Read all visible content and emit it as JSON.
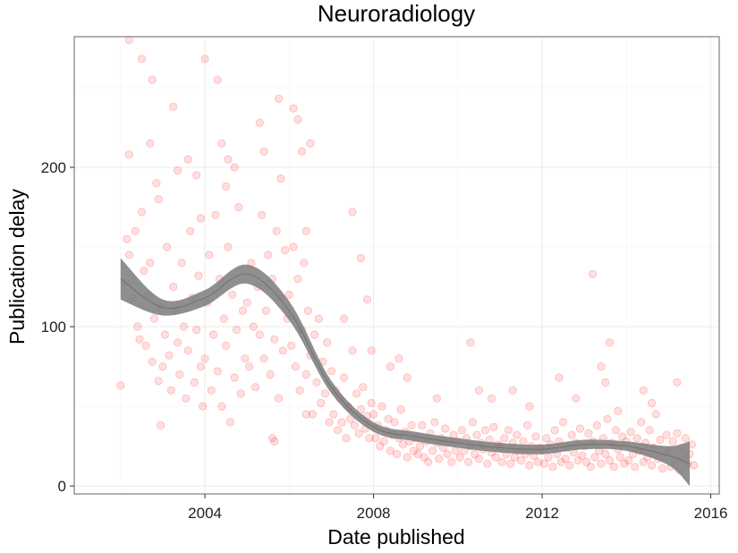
{
  "chart_data": {
    "type": "scatter",
    "title": "Neuroradiology",
    "xlabel": "Date published",
    "ylabel": "Publication delay",
    "xlim": [
      2000.9,
      2016.2
    ],
    "ylim": [
      -5,
      282
    ],
    "x_ticks": [
      2004,
      2008,
      2012,
      2016
    ],
    "y_ticks": [
      0,
      100,
      200
    ],
    "grid": true,
    "colors": {
      "points": "#ff0000",
      "smooth_band": "#808080",
      "smooth_line": "#555555",
      "panel_border": "#7f7f7f",
      "grid": "#ebebeb"
    },
    "smooth": {
      "x": [
        2002.0,
        2003.0,
        2004.0,
        2005.0,
        2006.0,
        2007.0,
        2008.0,
        2009.0,
        2010.0,
        2011.0,
        2012.0,
        2013.0,
        2014.0,
        2015.0,
        2015.5
      ],
      "y": [
        130,
        112,
        118,
        133,
        110,
        62,
        37,
        31,
        27,
        24,
        23,
        26,
        25,
        19,
        14
      ],
      "band_halfwidth": [
        13,
        5,
        5,
        6,
        6,
        4,
        3,
        3,
        3,
        3,
        3,
        3,
        3,
        6,
        14
      ]
    },
    "points": [
      [
        2002.0,
        63
      ],
      [
        2002.1,
        128
      ],
      [
        2002.15,
        155
      ],
      [
        2002.2,
        145
      ],
      [
        2002.3,
        118
      ],
      [
        2002.35,
        160
      ],
      [
        2002.4,
        100
      ],
      [
        2002.45,
        92
      ],
      [
        2002.5,
        172
      ],
      [
        2002.55,
        135
      ],
      [
        2002.6,
        88
      ],
      [
        2002.65,
        120
      ],
      [
        2002.7,
        140
      ],
      [
        2002.75,
        78
      ],
      [
        2002.8,
        105
      ],
      [
        2002.85,
        190
      ],
      [
        2002.9,
        66
      ],
      [
        2002.95,
        112
      ],
      [
        2002.2,
        208
      ],
      [
        2002.2,
        280
      ],
      [
        2002.5,
        268
      ],
      [
        2002.7,
        215
      ],
      [
        2002.75,
        255
      ],
      [
        2002.9,
        180
      ],
      [
        2002.95,
        38
      ],
      [
        2003.0,
        75
      ],
      [
        2003.05,
        95
      ],
      [
        2003.1,
        150
      ],
      [
        2003.15,
        82
      ],
      [
        2003.2,
        60
      ],
      [
        2003.25,
        125
      ],
      [
        2003.3,
        110
      ],
      [
        2003.35,
        90
      ],
      [
        2003.4,
        70
      ],
      [
        2003.45,
        140
      ],
      [
        2003.5,
        100
      ],
      [
        2003.55,
        55
      ],
      [
        2003.6,
        85
      ],
      [
        2003.65,
        160
      ],
      [
        2003.7,
        118
      ],
      [
        2003.75,
        65
      ],
      [
        2003.8,
        98
      ],
      [
        2003.85,
        132
      ],
      [
        2003.9,
        75
      ],
      [
        2003.95,
        50
      ],
      [
        2003.25,
        238
      ],
      [
        2003.35,
        198
      ],
      [
        2003.6,
        205
      ],
      [
        2003.8,
        195
      ],
      [
        2003.9,
        168
      ],
      [
        2004.0,
        80
      ],
      [
        2004.05,
        115
      ],
      [
        2004.1,
        145
      ],
      [
        2004.15,
        60
      ],
      [
        2004.2,
        95
      ],
      [
        2004.25,
        170
      ],
      [
        2004.3,
        72
      ],
      [
        2004.35,
        130
      ],
      [
        2004.4,
        50
      ],
      [
        2004.45,
        105
      ],
      [
        2004.5,
        88
      ],
      [
        2004.55,
        150
      ],
      [
        2004.6,
        40
      ],
      [
        2004.65,
        120
      ],
      [
        2004.7,
        68
      ],
      [
        2004.75,
        98
      ],
      [
        2004.8,
        175
      ],
      [
        2004.85,
        58
      ],
      [
        2004.9,
        110
      ],
      [
        2004.95,
        80
      ],
      [
        2004.0,
        268
      ],
      [
        2004.3,
        255
      ],
      [
        2004.4,
        215
      ],
      [
        2004.5,
        188
      ],
      [
        2004.55,
        205
      ],
      [
        2004.7,
        200
      ],
      [
        2005.0,
        115
      ],
      [
        2005.05,
        75
      ],
      [
        2005.1,
        140
      ],
      [
        2005.15,
        100
      ],
      [
        2005.2,
        62
      ],
      [
        2005.25,
        125
      ],
      [
        2005.3,
        95
      ],
      [
        2005.35,
        170
      ],
      [
        2005.4,
        80
      ],
      [
        2005.45,
        110
      ],
      [
        2005.5,
        145
      ],
      [
        2005.55,
        70
      ],
      [
        2005.6,
        130
      ],
      [
        2005.65,
        92
      ],
      [
        2005.7,
        160
      ],
      [
        2005.75,
        55
      ],
      [
        2005.8,
        118
      ],
      [
        2005.85,
        85
      ],
      [
        2005.9,
        148
      ],
      [
        2005.95,
        105
      ],
      [
        2005.3,
        228
      ],
      [
        2005.4,
        210
      ],
      [
        2005.6,
        30
      ],
      [
        2005.65,
        28
      ],
      [
        2005.75,
        243
      ],
      [
        2005.8,
        193
      ],
      [
        2006.0,
        120
      ],
      [
        2006.05,
        88
      ],
      [
        2006.1,
        150
      ],
      [
        2006.15,
        75
      ],
      [
        2006.2,
        130
      ],
      [
        2006.25,
        60
      ],
      [
        2006.3,
        98
      ],
      [
        2006.35,
        140
      ],
      [
        2006.4,
        70
      ],
      [
        2006.45,
        110
      ],
      [
        2006.5,
        82
      ],
      [
        2006.55,
        45
      ],
      [
        2006.6,
        95
      ],
      [
        2006.65,
        65
      ],
      [
        2006.7,
        105
      ],
      [
        2006.75,
        52
      ],
      [
        2006.8,
        78
      ],
      [
        2006.85,
        58
      ],
      [
        2006.9,
        90
      ],
      [
        2006.95,
        40
      ],
      [
        2006.1,
        237
      ],
      [
        2006.2,
        230
      ],
      [
        2006.3,
        210
      ],
      [
        2006.5,
        215
      ],
      [
        2006.4,
        160
      ],
      [
        2006.4,
        45
      ],
      [
        2007.0,
        72
      ],
      [
        2007.05,
        45
      ],
      [
        2007.1,
        60
      ],
      [
        2007.15,
        35
      ],
      [
        2007.2,
        55
      ],
      [
        2007.25,
        40
      ],
      [
        2007.3,
        68
      ],
      [
        2007.35,
        30
      ],
      [
        2007.4,
        50
      ],
      [
        2007.45,
        42
      ],
      [
        2007.5,
        85
      ],
      [
        2007.55,
        38
      ],
      [
        2007.6,
        58
      ],
      [
        2007.65,
        33
      ],
      [
        2007.7,
        48
      ],
      [
        2007.75,
        62
      ],
      [
        2007.8,
        36
      ],
      [
        2007.85,
        44
      ],
      [
        2007.9,
        30
      ],
      [
        2007.95,
        52
      ],
      [
        2007.3,
        105
      ],
      [
        2007.5,
        172
      ],
      [
        2007.7,
        143
      ],
      [
        2007.85,
        117
      ],
      [
        2007.95,
        85
      ],
      [
        2008.0,
        45
      ],
      [
        2008.05,
        30
      ],
      [
        2008.1,
        38
      ],
      [
        2008.15,
        25
      ],
      [
        2008.2,
        50
      ],
      [
        2008.25,
        28
      ],
      [
        2008.3,
        35
      ],
      [
        2008.35,
        42
      ],
      [
        2008.4,
        22
      ],
      [
        2008.45,
        32
      ],
      [
        2008.5,
        40
      ],
      [
        2008.55,
        20
      ],
      [
        2008.6,
        30
      ],
      [
        2008.65,
        48
      ],
      [
        2008.7,
        26
      ],
      [
        2008.75,
        34
      ],
      [
        2008.8,
        18
      ],
      [
        2008.85,
        28
      ],
      [
        2008.9,
        38
      ],
      [
        2008.95,
        22
      ],
      [
        2008.4,
        75
      ],
      [
        2008.6,
        80
      ],
      [
        2008.8,
        68
      ],
      [
        2009.0,
        30
      ],
      [
        2009.05,
        20
      ],
      [
        2009.1,
        25
      ],
      [
        2009.15,
        38
      ],
      [
        2009.2,
        18
      ],
      [
        2009.25,
        28
      ],
      [
        2009.3,
        15
      ],
      [
        2009.35,
        33
      ],
      [
        2009.4,
        22
      ],
      [
        2009.45,
        40
      ],
      [
        2009.5,
        27
      ],
      [
        2009.55,
        17
      ],
      [
        2009.6,
        30
      ],
      [
        2009.65,
        24
      ],
      [
        2009.7,
        36
      ],
      [
        2009.75,
        20
      ],
      [
        2009.8,
        28
      ],
      [
        2009.85,
        15
      ],
      [
        2009.9,
        32
      ],
      [
        2009.95,
        22
      ],
      [
        2009.5,
        55
      ],
      [
        2010.0,
        28
      ],
      [
        2010.05,
        18
      ],
      [
        2010.1,
        35
      ],
      [
        2010.15,
        22
      ],
      [
        2010.2,
        30
      ],
      [
        2010.25,
        15
      ],
      [
        2010.3,
        25
      ],
      [
        2010.35,
        40
      ],
      [
        2010.4,
        20
      ],
      [
        2010.45,
        32
      ],
      [
        2010.5,
        17
      ],
      [
        2010.55,
        27
      ],
      [
        2010.6,
        23
      ],
      [
        2010.65,
        35
      ],
      [
        2010.7,
        14
      ],
      [
        2010.75,
        29
      ],
      [
        2010.8,
        21
      ],
      [
        2010.85,
        37
      ],
      [
        2010.9,
        18
      ],
      [
        2010.95,
        26
      ],
      [
        2010.3,
        90
      ],
      [
        2010.5,
        60
      ],
      [
        2010.8,
        55
      ],
      [
        2011.0,
        25
      ],
      [
        2011.05,
        15
      ],
      [
        2011.1,
        30
      ],
      [
        2011.15,
        20
      ],
      [
        2011.2,
        35
      ],
      [
        2011.25,
        14
      ],
      [
        2011.3,
        27
      ],
      [
        2011.35,
        18
      ],
      [
        2011.4,
        32
      ],
      [
        2011.45,
        22
      ],
      [
        2011.5,
        16
      ],
      [
        2011.55,
        28
      ],
      [
        2011.6,
        20
      ],
      [
        2011.65,
        38
      ],
      [
        2011.7,
        13
      ],
      [
        2011.75,
        25
      ],
      [
        2011.8,
        19
      ],
      [
        2011.85,
        31
      ],
      [
        2011.9,
        15
      ],
      [
        2011.95,
        24
      ],
      [
        2011.3,
        60
      ],
      [
        2011.7,
        50
      ],
      [
        2012.0,
        22
      ],
      [
        2012.05,
        14
      ],
      [
        2012.1,
        30
      ],
      [
        2012.15,
        18
      ],
      [
        2012.2,
        26
      ],
      [
        2012.25,
        12
      ],
      [
        2012.3,
        35
      ],
      [
        2012.35,
        20
      ],
      [
        2012.4,
        28
      ],
      [
        2012.45,
        15
      ],
      [
        2012.5,
        40
      ],
      [
        2012.55,
        17
      ],
      [
        2012.6,
        24
      ],
      [
        2012.65,
        13
      ],
      [
        2012.7,
        32
      ],
      [
        2012.75,
        21
      ],
      [
        2012.8,
        27
      ],
      [
        2012.85,
        16
      ],
      [
        2012.9,
        36
      ],
      [
        2012.95,
        19
      ],
      [
        2012.4,
        68
      ],
      [
        2012.8,
        55
      ],
      [
        2013.0,
        25
      ],
      [
        2013.05,
        15
      ],
      [
        2013.1,
        33
      ],
      [
        2013.15,
        12
      ],
      [
        2013.2,
        28
      ],
      [
        2013.25,
        18
      ],
      [
        2013.3,
        38
      ],
      [
        2013.35,
        22
      ],
      [
        2013.4,
        14
      ],
      [
        2013.45,
        30
      ],
      [
        2013.5,
        20
      ],
      [
        2013.55,
        42
      ],
      [
        2013.6,
        16
      ],
      [
        2013.65,
        27
      ],
      [
        2013.7,
        12
      ],
      [
        2013.75,
        35
      ],
      [
        2013.8,
        23
      ],
      [
        2013.85,
        18
      ],
      [
        2013.9,
        31
      ],
      [
        2013.95,
        14
      ],
      [
        2013.2,
        133
      ],
      [
        2013.4,
        75
      ],
      [
        2013.6,
        90
      ],
      [
        2013.5,
        65
      ],
      [
        2013.8,
        47
      ],
      [
        2014.0,
        28
      ],
      [
        2014.05,
        16
      ],
      [
        2014.1,
        34
      ],
      [
        2014.15,
        20
      ],
      [
        2014.2,
        12
      ],
      [
        2014.25,
        30
      ],
      [
        2014.3,
        22
      ],
      [
        2014.35,
        40
      ],
      [
        2014.4,
        15
      ],
      [
        2014.45,
        27
      ],
      [
        2014.5,
        18
      ],
      [
        2014.55,
        35
      ],
      [
        2014.6,
        13
      ],
      [
        2014.65,
        24
      ],
      [
        2014.7,
        45
      ],
      [
        2014.75,
        17
      ],
      [
        2014.8,
        29
      ],
      [
        2014.85,
        11
      ],
      [
        2014.9,
        21
      ],
      [
        2014.95,
        32
      ],
      [
        2014.4,
        60
      ],
      [
        2014.6,
        52
      ],
      [
        2015.0,
        22
      ],
      [
        2015.05,
        12
      ],
      [
        2015.1,
        28
      ],
      [
        2015.15,
        16
      ],
      [
        2015.2,
        33
      ],
      [
        2015.25,
        10
      ],
      [
        2015.3,
        24
      ],
      [
        2015.35,
        18
      ],
      [
        2015.4,
        30
      ],
      [
        2015.45,
        14
      ],
      [
        2015.5,
        20
      ],
      [
        2015.55,
        26
      ],
      [
        2015.6,
        13
      ],
      [
        2015.2,
        65
      ]
    ]
  }
}
